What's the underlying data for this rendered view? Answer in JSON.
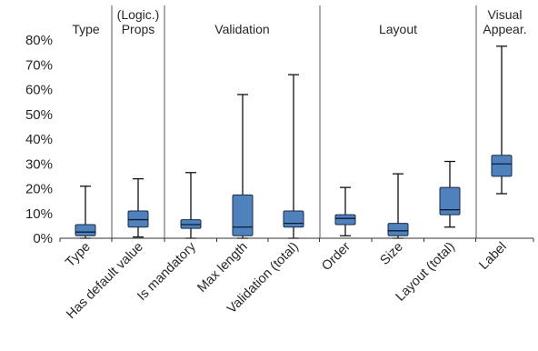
{
  "chart_data": {
    "type": "boxplot",
    "y_axis": {
      "ylim": [
        0,
        80
      ],
      "ticks": [
        0,
        10,
        20,
        30,
        40,
        50,
        60,
        70,
        80
      ],
      "tick_labels": [
        "0%",
        "10%",
        "20%",
        "30%",
        "40%",
        "50%",
        "60%",
        "70%",
        "80%"
      ],
      "unit": "%"
    },
    "grid": false,
    "colors": {
      "box_fill": "#4f81bd",
      "box_stroke": "#1a2a45",
      "whisker": "#111111",
      "separator": "#5a5a5a"
    },
    "groups": [
      {
        "label_lines": [
          "Type"
        ],
        "categories": [
          "Type"
        ]
      },
      {
        "label_lines": [
          "(Logic.)",
          "Props"
        ],
        "categories": [
          "Has default value"
        ]
      },
      {
        "label_lines": [
          "Validation"
        ],
        "categories": [
          "Is mandatory",
          "Max length",
          "Validation (total)"
        ]
      },
      {
        "label_lines": [
          "Layout"
        ],
        "categories": [
          "Order",
          "Size",
          "Layout (total)"
        ]
      },
      {
        "label_lines": [
          "Visual",
          "Appear."
        ],
        "categories": [
          "Label"
        ]
      }
    ],
    "categories": [
      "Type",
      "Has default value",
      "Is mandatory",
      "Max length",
      "Validation (total)",
      "Order",
      "Size",
      "Layout (total)",
      "Label"
    ],
    "series": [
      {
        "boxes": [
          {
            "min": 0,
            "q1": 1,
            "median": 2.5,
            "q3": 5.5,
            "max": 21
          },
          {
            "min": 0.5,
            "q1": 4.5,
            "median": 7.5,
            "q3": 11,
            "max": 24
          },
          {
            "min": 0,
            "q1": 4,
            "median": 5.5,
            "q3": 7.5,
            "max": 26.5
          },
          {
            "min": 0,
            "q1": 1,
            "median": 4.5,
            "q3": 17.5,
            "max": 58
          },
          {
            "min": 0,
            "q1": 4.5,
            "median": 6,
            "q3": 11,
            "max": 66
          },
          {
            "min": 1,
            "q1": 5.5,
            "median": 8,
            "q3": 9.5,
            "max": 20.5
          },
          {
            "min": 0,
            "q1": 1,
            "median": 3,
            "q3": 6,
            "max": 26
          },
          {
            "min": 4.5,
            "q1": 9.5,
            "median": 11.5,
            "q3": 20.5,
            "max": 31
          },
          {
            "min": 18,
            "q1": 25,
            "median": 30,
            "q3": 33.5,
            "max": 77.5
          }
        ]
      }
    ]
  }
}
